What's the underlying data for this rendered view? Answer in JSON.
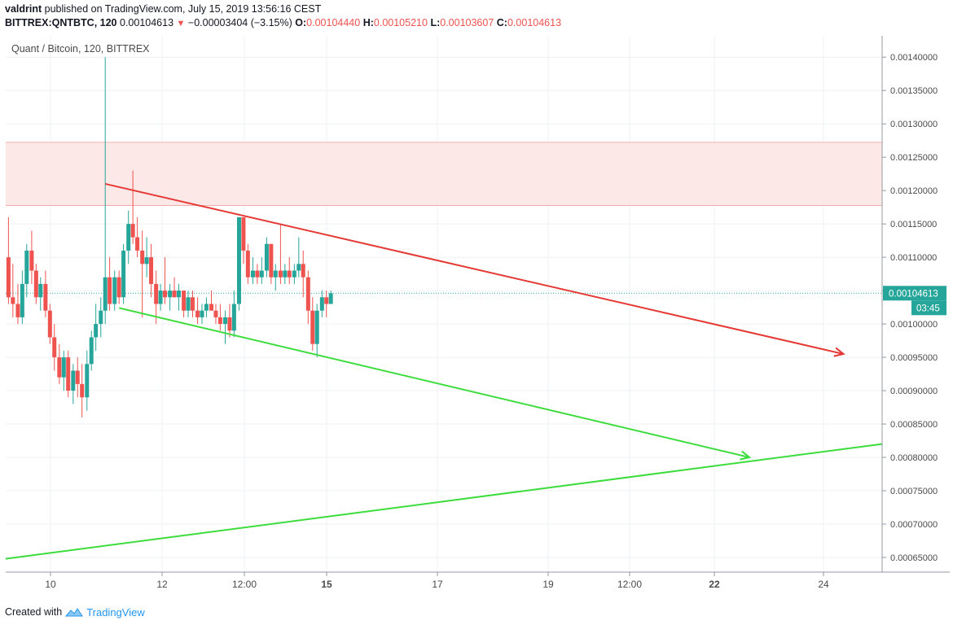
{
  "header": {
    "author": "valdrint",
    "published_text": "published on TradingView.com, July 15, 2019 13:56:16 CEST",
    "symbol": "BITTREX:QNTBTC, 120",
    "last": "0.00104613",
    "down_arrow": "▼",
    "change": "−0.00003404 (−3.15%)",
    "o_label": "O:",
    "o_value": "0.00104440",
    "h_label": "H:",
    "h_value": "0.00105210",
    "l_label": "L:",
    "l_value": "0.00103607",
    "c_label": "C:",
    "c_value": "0.00104613"
  },
  "footer": {
    "created_with": "Created with",
    "brand": "TradingView"
  },
  "chart_data": {
    "type": "candlestick",
    "title": "Quant / Bitcoin, 120, BITTREX",
    "x_ticks": [
      "10",
      "12",
      "12:00",
      "15",
      "17",
      "19",
      "12:00",
      "22",
      "24"
    ],
    "x_ticks_bold": [
      false,
      false,
      false,
      true,
      false,
      false,
      false,
      true,
      false
    ],
    "y_ticks": [
      "0.00140000",
      "0.00135000",
      "0.00130000",
      "0.00125000",
      "0.00120000",
      "0.00115000",
      "0.00110000",
      "0.00105000",
      "0.00100000",
      "0.00095000",
      "0.00090000",
      "0.00085000",
      "0.00080000",
      "0.00075000",
      "0.00070000",
      "0.00065000"
    ],
    "y_tick_values": [
      0.0014,
      0.00135,
      0.0013,
      0.00125,
      0.0012,
      0.00115,
      0.0011,
      0.00105,
      0.001,
      0.00095,
      0.0009,
      0.00085,
      0.0008,
      0.00075,
      0.0007,
      0.00065
    ],
    "ylim": [
      0.000628,
      0.001432
    ],
    "xlim_days": [
      9.35,
      25.2
    ],
    "last_price_label": "0.00104613",
    "last_price": 0.00104613,
    "countdown_label": "03:45",
    "resistance_zone": [
      0.001178,
      0.001272
    ],
    "colors": {
      "up": "#26a69a",
      "down": "#ef5350",
      "zone": "#f8d3d3",
      "upper_line": "#e53935",
      "lower_line": "#3ddc3d",
      "last_price": "#26a69a"
    },
    "candles": [
      {
        "t": 9.4,
        "o": 0.0011,
        "h": 0.00116,
        "l": 0.00103,
        "c": 0.00104
      },
      {
        "t": 9.48,
        "o": 0.00104,
        "h": 0.00109,
        "l": 0.00101,
        "c": 0.00103
      },
      {
        "t": 9.57,
        "o": 0.00103,
        "h": 0.00106,
        "l": 0.001,
        "c": 0.00101
      },
      {
        "t": 9.65,
        "o": 0.00101,
        "h": 0.00108,
        "l": 0.001,
        "c": 0.00106
      },
      {
        "t": 9.73,
        "o": 0.00106,
        "h": 0.00112,
        "l": 0.00104,
        "c": 0.00111
      },
      {
        "t": 9.82,
        "o": 0.00111,
        "h": 0.00114,
        "l": 0.00106,
        "c": 0.00108
      },
      {
        "t": 9.9,
        "o": 0.00108,
        "h": 0.00109,
        "l": 0.00103,
        "c": 0.00104
      },
      {
        "t": 9.98,
        "o": 0.00104,
        "h": 0.00107,
        "l": 0.00102,
        "c": 0.00106
      },
      {
        "t": 10.07,
        "o": 0.00106,
        "h": 0.00108,
        "l": 0.00101,
        "c": 0.00102
      },
      {
        "t": 10.15,
        "o": 0.00102,
        "h": 0.00103,
        "l": 0.00097,
        "c": 0.00098
      },
      {
        "t": 10.23,
        "o": 0.00098,
        "h": 0.001,
        "l": 0.00093,
        "c": 0.00095
      },
      {
        "t": 10.32,
        "o": 0.00095,
        "h": 0.00097,
        "l": 0.00091,
        "c": 0.00092
      },
      {
        "t": 10.4,
        "o": 0.00092,
        "h": 0.00096,
        "l": 0.0009,
        "c": 0.00095
      },
      {
        "t": 10.48,
        "o": 0.00095,
        "h": 0.00096,
        "l": 0.00089,
        "c": 0.0009
      },
      {
        "t": 10.57,
        "o": 0.0009,
        "h": 0.00094,
        "l": 0.00088,
        "c": 0.00093
      },
      {
        "t": 10.65,
        "o": 0.00093,
        "h": 0.00095,
        "l": 0.00089,
        "c": 0.00091
      },
      {
        "t": 10.73,
        "o": 0.00091,
        "h": 0.00094,
        "l": 0.00086,
        "c": 0.00089
      },
      {
        "t": 10.82,
        "o": 0.00089,
        "h": 0.00096,
        "l": 0.00087,
        "c": 0.00094
      },
      {
        "t": 10.9,
        "o": 0.00094,
        "h": 0.00099,
        "l": 0.00093,
        "c": 0.00098
      },
      {
        "t": 10.98,
        "o": 0.00098,
        "h": 0.00103,
        "l": 0.00096,
        "c": 0.001
      },
      {
        "t": 11.07,
        "o": 0.001,
        "h": 0.00104,
        "l": 0.00098,
        "c": 0.00102
      },
      {
        "t": 11.15,
        "o": 0.00102,
        "h": 0.0014,
        "l": 0.001,
        "c": 0.00107
      },
      {
        "t": 11.23,
        "o": 0.00107,
        "h": 0.0011,
        "l": 0.00102,
        "c": 0.00103
      },
      {
        "t": 11.32,
        "o": 0.00103,
        "h": 0.00108,
        "l": 0.00102,
        "c": 0.00107
      },
      {
        "t": 11.4,
        "o": 0.00107,
        "h": 0.00108,
        "l": 0.00103,
        "c": 0.00104
      },
      {
        "t": 11.48,
        "o": 0.00104,
        "h": 0.00112,
        "l": 0.00103,
        "c": 0.00111
      },
      {
        "t": 11.57,
        "o": 0.00111,
        "h": 0.00117,
        "l": 0.00109,
        "c": 0.00115
      },
      {
        "t": 11.65,
        "o": 0.00115,
        "h": 0.00123,
        "l": 0.00112,
        "c": 0.00113
      },
      {
        "t": 11.73,
        "o": 0.00113,
        "h": 0.00116,
        "l": 0.0011,
        "c": 0.00111
      },
      {
        "t": 11.82,
        "o": 0.00111,
        "h": 0.00114,
        "l": 0.00101,
        "c": 0.00109
      },
      {
        "t": 11.9,
        "o": 0.00109,
        "h": 0.00113,
        "l": 0.00107,
        "c": 0.0011
      },
      {
        "t": 11.98,
        "o": 0.0011,
        "h": 0.00112,
        "l": 0.00104,
        "c": 0.00106
      },
      {
        "t": 12.07,
        "o": 0.00106,
        "h": 0.00108,
        "l": 0.001,
        "c": 0.00103
      },
      {
        "t": 12.15,
        "o": 0.00103,
        "h": 0.00106,
        "l": 0.00102,
        "c": 0.00105
      },
      {
        "t": 12.23,
        "o": 0.00105,
        "h": 0.0011,
        "l": 0.00103,
        "c": 0.00104
      },
      {
        "t": 12.32,
        "o": 0.00104,
        "h": 0.00106,
        "l": 0.00102,
        "c": 0.00105
      },
      {
        "t": 12.4,
        "o": 0.00105,
        "h": 0.00107,
        "l": 0.00104,
        "c": 0.00104
      },
      {
        "t": 12.48,
        "o": 0.00104,
        "h": 0.00106,
        "l": 0.00102,
        "c": 0.00105
      },
      {
        "t": 12.57,
        "o": 0.00105,
        "h": 0.00105,
        "l": 0.00101,
        "c": 0.00102
      },
      {
        "t": 12.65,
        "o": 0.00102,
        "h": 0.00105,
        "l": 0.00101,
        "c": 0.00104
      },
      {
        "t": 12.73,
        "o": 0.00104,
        "h": 0.00105,
        "l": 0.00101,
        "c": 0.00102
      },
      {
        "t": 12.82,
        "o": 0.00102,
        "h": 0.00104,
        "l": 0.001,
        "c": 0.00101
      },
      {
        "t": 12.9,
        "o": 0.00101,
        "h": 0.00103,
        "l": 0.001,
        "c": 0.00102
      },
      {
        "t": 12.98,
        "o": 0.00102,
        "h": 0.00104,
        "l": 0.00101,
        "c": 0.00103
      },
      {
        "t": 13.07,
        "o": 0.00103,
        "h": 0.00105,
        "l": 0.00102,
        "c": 0.00102
      },
      {
        "t": 13.15,
        "o": 0.00102,
        "h": 0.00103,
        "l": 0.001,
        "c": 0.00101
      },
      {
        "t": 13.23,
        "o": 0.00101,
        "h": 0.00103,
        "l": 0.00099,
        "c": 0.001
      },
      {
        "t": 13.32,
        "o": 0.001,
        "h": 0.00102,
        "l": 0.00097,
        "c": 0.00101
      },
      {
        "t": 13.4,
        "o": 0.00101,
        "h": 0.00103,
        "l": 0.00098,
        "c": 0.00099
      },
      {
        "t": 13.48,
        "o": 0.00099,
        "h": 0.00105,
        "l": 0.00098,
        "c": 0.00103
      },
      {
        "t": 13.57,
        "o": 0.00103,
        "h": 0.00116,
        "l": 0.00102,
        "c": 0.00116
      },
      {
        "t": 13.65,
        "o": 0.00116,
        "h": 0.00116,
        "l": 0.00109,
        "c": 0.00111
      },
      {
        "t": 13.73,
        "o": 0.00111,
        "h": 0.00112,
        "l": 0.00106,
        "c": 0.00107
      },
      {
        "t": 13.82,
        "o": 0.00107,
        "h": 0.0011,
        "l": 0.00106,
        "c": 0.00108
      },
      {
        "t": 13.9,
        "o": 0.00108,
        "h": 0.00109,
        "l": 0.00106,
        "c": 0.00107
      },
      {
        "t": 13.98,
        "o": 0.00107,
        "h": 0.0011,
        "l": 0.00106,
        "c": 0.00108
      },
      {
        "t": 14.07,
        "o": 0.00108,
        "h": 0.00113,
        "l": 0.00107,
        "c": 0.00112
      },
      {
        "t": 14.15,
        "o": 0.00112,
        "h": 0.00112,
        "l": 0.00106,
        "c": 0.00107
      },
      {
        "t": 14.23,
        "o": 0.00107,
        "h": 0.00109,
        "l": 0.00105,
        "c": 0.00108
      },
      {
        "t": 14.32,
        "o": 0.00108,
        "h": 0.00115,
        "l": 0.00106,
        "c": 0.00107
      },
      {
        "t": 14.4,
        "o": 0.00107,
        "h": 0.00109,
        "l": 0.00106,
        "c": 0.00108
      },
      {
        "t": 14.48,
        "o": 0.00108,
        "h": 0.0011,
        "l": 0.00106,
        "c": 0.00107
      },
      {
        "t": 14.57,
        "o": 0.00107,
        "h": 0.00109,
        "l": 0.00106,
        "c": 0.00108
      },
      {
        "t": 14.65,
        "o": 0.00108,
        "h": 0.00113,
        "l": 0.00107,
        "c": 0.00109
      },
      {
        "t": 14.73,
        "o": 0.00109,
        "h": 0.00111,
        "l": 0.00104,
        "c": 0.00107
      },
      {
        "t": 14.82,
        "o": 0.00107,
        "h": 0.00108,
        "l": 0.001,
        "c": 0.00102
      },
      {
        "t": 14.9,
        "o": 0.00102,
        "h": 0.00104,
        "l": 0.00096,
        "c": 0.00097
      },
      {
        "t": 14.98,
        "o": 0.00097,
        "h": 0.00103,
        "l": 0.00095,
        "c": 0.00102
      },
      {
        "t": 15.07,
        "o": 0.00102,
        "h": 0.00105,
        "l": 0.00101,
        "c": 0.00104
      },
      {
        "t": 15.15,
        "o": 0.00104,
        "h": 0.00105,
        "l": 0.00101,
        "c": 0.00103
      },
      {
        "t": 15.23,
        "o": 0.00103,
        "h": 0.00105,
        "l": 0.00103,
        "c": 0.001046
      }
    ],
    "trendlines": [
      {
        "name": "upper-resistance-line",
        "color": "#e53935",
        "p1": [
          11.15,
          0.00121
        ],
        "p2": [
          24.5,
          0.000955
        ],
        "arrow": true
      },
      {
        "name": "lower-support-line",
        "color": "#3ddc3d",
        "p1": [
          11.4,
          0.001024
        ],
        "p2": [
          22.8,
          0.0008
        ],
        "arrow": true
      },
      {
        "name": "rising-support-line",
        "color": "#3ddc3d",
        "p1": [
          9.35,
          0.000648
        ],
        "p2": [
          25.2,
          0.00082
        ],
        "arrow": false
      }
    ]
  }
}
